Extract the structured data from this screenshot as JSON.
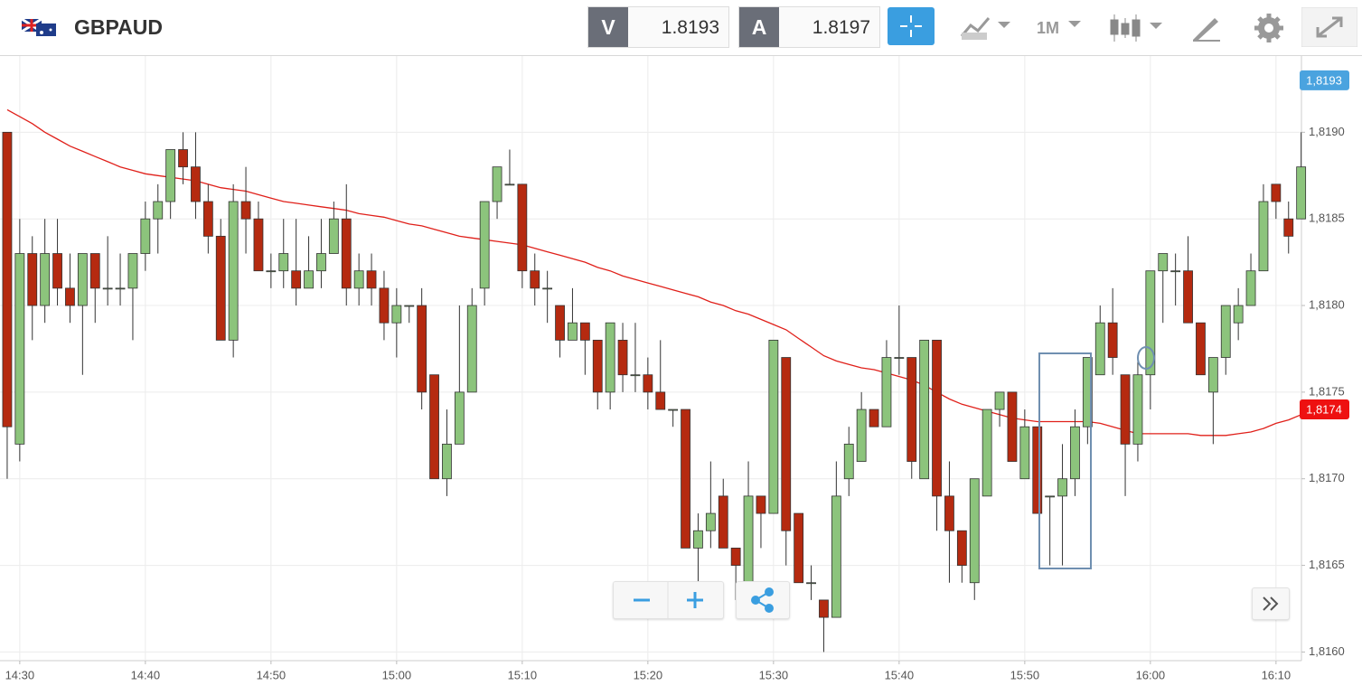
{
  "chart_data": {
    "type": "candlestick",
    "title": "GBPAUD",
    "toolbar": {
      "bid": {
        "label": "V",
        "value": 1.8193
      },
      "ask": {
        "label": "A",
        "value": 1.8197
      },
      "timeframe": "1M"
    },
    "categories": [
      null,
      "14:30",
      null,
      null,
      null,
      null,
      null,
      null,
      null,
      null,
      null,
      "14:40",
      null,
      null,
      null,
      null,
      null,
      null,
      null,
      null,
      null,
      "14:50",
      null,
      null,
      null,
      null,
      null,
      null,
      null,
      null,
      null,
      "15:00",
      null,
      null,
      null,
      null,
      null,
      null,
      null,
      null,
      null,
      "15:10",
      null,
      null,
      null,
      null,
      null,
      null,
      null,
      null,
      null,
      "15:20",
      null,
      null,
      null,
      null,
      null,
      null,
      null,
      null,
      null,
      "15:30",
      null,
      null,
      null,
      null,
      null,
      null,
      null,
      null,
      null,
      "15:40",
      null,
      null,
      null,
      null,
      null,
      null,
      null,
      null,
      null,
      "15:50",
      null,
      null,
      null,
      null,
      null,
      null,
      null,
      null,
      null,
      "16:00",
      null,
      null,
      null,
      null,
      null,
      null,
      null,
      null,
      null,
      "16:10",
      null,
      null
    ],
    "open": [
      1.819,
      1.8172,
      1.8183,
      1.818,
      1.8183,
      1.8181,
      1.818,
      1.8183,
      1.8181,
      1.8181,
      1.8181,
      1.8183,
      1.8185,
      1.8186,
      1.8189,
      1.8188,
      1.8186,
      1.8184,
      1.8178,
      1.8186,
      1.8185,
      1.8182,
      1.8182,
      1.8182,
      1.8181,
      1.8182,
      1.8183,
      1.8185,
      1.8181,
      1.8182,
      1.8181,
      1.8179,
      1.818,
      1.818,
      1.8176,
      1.817,
      1.8172,
      1.8175,
      1.8181,
      1.8186,
      1.8187,
      1.8187,
      1.8182,
      1.8181,
      1.818,
      1.8178,
      1.8179,
      1.8178,
      1.8175,
      1.8178,
      1.8176,
      1.8176,
      1.8175,
      1.8174,
      1.8174,
      1.8166,
      1.8167,
      1.8169,
      1.8166,
      1.8164,
      1.8169,
      1.8168,
      1.8177,
      1.8168,
      1.8164,
      1.8163,
      1.8162,
      1.817,
      1.8171,
      1.8174,
      1.8173,
      1.8177,
      1.8177,
      1.817,
      1.8178,
      1.8169,
      1.8167,
      1.8164,
      1.8169,
      1.8174,
      1.8175,
      1.817,
      1.8173,
      1.8169,
      1.8169,
      1.817,
      1.8173,
      1.8176,
      1.8179,
      1.8176,
      1.8172,
      1.8176,
      1.8182,
      1.8182,
      1.8182,
      1.8179,
      1.8175,
      1.8177,
      1.8179,
      1.818,
      1.8182,
      1.8187,
      1.8185,
      1.8185
    ],
    "high": [
      1.819,
      1.8185,
      1.8184,
      1.8185,
      1.8185,
      1.8183,
      1.8183,
      1.8183,
      1.8184,
      1.8183,
      1.8183,
      1.8186,
      1.8187,
      1.8189,
      1.819,
      1.819,
      1.8187,
      1.8185,
      1.8187,
      1.8188,
      1.8186,
      1.8183,
      1.8185,
      1.8185,
      1.8184,
      1.8185,
      1.8186,
      1.8187,
      1.8183,
      1.8183,
      1.8182,
      1.8181,
      1.818,
      1.8181,
      1.8176,
      1.8174,
      1.818,
      1.8181,
      1.8186,
      1.8188,
      1.8189,
      1.8187,
      1.8183,
      1.8182,
      1.818,
      1.8181,
      1.8179,
      1.8178,
      1.8179,
      1.8179,
      1.8179,
      1.8177,
      1.8178,
      1.8174,
      1.8174,
      1.8168,
      1.8171,
      1.817,
      1.8166,
      1.8171,
      1.8169,
      1.8178,
      1.8177,
      1.8168,
      1.8165,
      1.8163,
      1.8171,
      1.8173,
      1.8175,
      1.8174,
      1.8178,
      1.818,
      1.8177,
      1.8178,
      1.8178,
      1.8171,
      1.8167,
      1.817,
      1.8174,
      1.8175,
      1.8175,
      1.8174,
      1.8173,
      1.8169,
      1.8172,
      1.8174,
      1.8177,
      1.818,
      1.8181,
      1.8176,
      1.8177,
      1.8182,
      1.8183,
      1.8183,
      1.8184,
      1.8179,
      1.8177,
      1.818,
      1.8181,
      1.8183,
      1.8187,
      1.8187,
      1.8186,
      1.819
    ],
    "low": [
      1.817,
      1.8171,
      1.8178,
      1.8179,
      1.818,
      1.8179,
      1.8176,
      1.8179,
      1.818,
      1.818,
      1.8178,
      1.8182,
      1.8183,
      1.8185,
      1.8187,
      1.8185,
      1.8183,
      1.8178,
      1.8177,
      1.8183,
      1.8182,
      1.8181,
      1.8181,
      1.818,
      1.8181,
      1.8181,
      1.8183,
      1.818,
      1.818,
      1.818,
      1.8178,
      1.8177,
      1.8179,
      1.8174,
      1.817,
      1.8169,
      1.8172,
      1.8175,
      1.818,
      1.8185,
      1.8187,
      1.8181,
      1.818,
      1.8179,
      1.8177,
      1.8178,
      1.8176,
      1.8174,
      1.8174,
      1.8175,
      1.8175,
      1.8174,
      1.8174,
      1.8173,
      1.8166,
      1.8164,
      1.8166,
      1.8166,
      1.8163,
      1.8163,
      1.8166,
      1.8168,
      1.8165,
      1.8164,
      1.8163,
      1.816,
      1.8162,
      1.8169,
      1.8171,
      1.8173,
      1.8173,
      1.8176,
      1.817,
      1.817,
      1.8167,
      1.8164,
      1.8164,
      1.8163,
      1.8169,
      1.8173,
      1.8171,
      1.817,
      1.8168,
      1.8165,
      1.8165,
      1.8169,
      1.8172,
      1.8176,
      1.8176,
      1.8169,
      1.8171,
      1.8174,
      1.8179,
      1.818,
      1.8179,
      1.8176,
      1.8172,
      1.8176,
      1.8178,
      1.818,
      1.8182,
      1.8185,
      1.8183,
      1.8185
    ],
    "close": [
      1.8173,
      1.8183,
      1.818,
      1.8183,
      1.8181,
      1.818,
      1.8183,
      1.8181,
      1.8181,
      1.8181,
      1.8183,
      1.8185,
      1.8186,
      1.8189,
      1.8188,
      1.8186,
      1.8184,
      1.8178,
      1.8186,
      1.8185,
      1.8182,
      1.8182,
      1.8183,
      1.8181,
      1.8182,
      1.8183,
      1.8185,
      1.8181,
      1.8182,
      1.8181,
      1.8179,
      1.818,
      1.818,
      1.8175,
      1.817,
      1.8172,
      1.8175,
      1.818,
      1.8186,
      1.8188,
      1.8187,
      1.8182,
      1.8181,
      1.8181,
      1.8178,
      1.8179,
      1.8178,
      1.8175,
      1.8179,
      1.8176,
      1.8176,
      1.8175,
      1.8174,
      1.8174,
      1.8166,
      1.8167,
      1.8168,
      1.8166,
      1.8165,
      1.8169,
      1.8168,
      1.8178,
      1.8167,
      1.8164,
      1.8164,
      1.8162,
      1.8169,
      1.8172,
      1.8174,
      1.8173,
      1.8177,
      1.8177,
      1.8171,
      1.8178,
      1.8169,
      1.8167,
      1.8165,
      1.817,
      1.8174,
      1.8175,
      1.8171,
      1.8173,
      1.8168,
      1.8169,
      1.817,
      1.8173,
      1.8177,
      1.8179,
      1.8177,
      1.8172,
      1.8176,
      1.8182,
      1.8183,
      1.8182,
      1.8179,
      1.8176,
      1.8177,
      1.818,
      1.818,
      1.8182,
      1.8186,
      1.8186,
      1.8184,
      1.8188
    ],
    "up_color": "#8cc47c",
    "down_color": "#b52a10",
    "moving_average": {
      "color": "#e0201a",
      "values": [
        1.81913,
        1.81909,
        1.81905,
        1.819,
        1.81896,
        1.81892,
        1.81889,
        1.81886,
        1.81883,
        1.8188,
        1.81878,
        1.81876,
        1.81875,
        1.81874,
        1.81873,
        1.81872,
        1.8187,
        1.81868,
        1.81867,
        1.81866,
        1.81864,
        1.81862,
        1.8186,
        1.81859,
        1.81858,
        1.81857,
        1.81856,
        1.81855,
        1.81853,
        1.81852,
        1.81851,
        1.81849,
        1.81847,
        1.81846,
        1.81844,
        1.81842,
        1.8184,
        1.81839,
        1.81838,
        1.81837,
        1.81836,
        1.81835,
        1.81833,
        1.81831,
        1.81829,
        1.81827,
        1.81825,
        1.81822,
        1.8182,
        1.81817,
        1.81815,
        1.81813,
        1.81811,
        1.81809,
        1.81807,
        1.81805,
        1.81802,
        1.818,
        1.81797,
        1.81795,
        1.81792,
        1.81789,
        1.81786,
        1.81781,
        1.81776,
        1.81771,
        1.81768,
        1.81766,
        1.81764,
        1.81763,
        1.81761,
        1.81759,
        1.81757,
        1.81754,
        1.8175,
        1.81746,
        1.81743,
        1.81741,
        1.81739,
        1.81737,
        1.81735,
        1.81734,
        1.81733,
        1.81733,
        1.81733,
        1.81733,
        1.81733,
        1.81732,
        1.8173,
        1.81728,
        1.81726,
        1.81726,
        1.81726,
        1.81726,
        1.81726,
        1.81725,
        1.81725,
        1.81725,
        1.81726,
        1.81727,
        1.81729,
        1.81732,
        1.81734,
        1.81737
      ]
    },
    "ylim": [
      1.81595,
      1.81944
    ],
    "yticks": [
      {
        "value": 1.816,
        "label": "1,8160"
      },
      {
        "value": 1.8165,
        "label": "1,8165"
      },
      {
        "value": 1.817,
        "label": "1,8170"
      },
      {
        "value": 1.8175,
        "label": "1,8175"
      },
      {
        "value": 1.818,
        "label": "1,8180"
      },
      {
        "value": 1.8185,
        "label": "1,8185"
      },
      {
        "value": 1.819,
        "label": "1,8190"
      }
    ],
    "price_tags": [
      {
        "value": 1.8193,
        "label": "1,8193",
        "color": "#4aa3df"
      },
      {
        "value": 1.8174,
        "label": "1,8174",
        "color": "#ee1111"
      }
    ],
    "grid": true
  }
}
